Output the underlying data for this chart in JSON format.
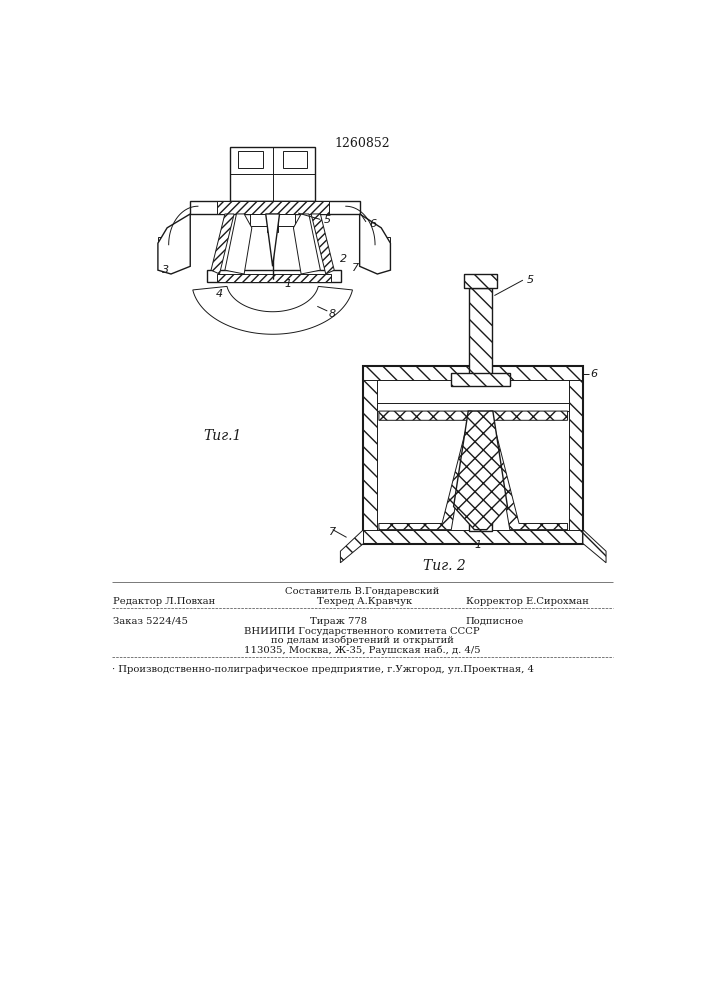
{
  "title": "1260852",
  "fig1_label": "Τиг.1",
  "fig2_label": "Τиг. 2",
  "footer_line1_center": "Составитель В.Гондаревский",
  "footer_line2_left": "Редактор Л.Повхан",
  "footer_line2_center": "Техред А.Кравчук",
  "footer_line2_right": "Корректор Е.Сирохман",
  "footer_line3_left": "Заказ 5224/45",
  "footer_line3_center": "Тираж 778",
  "footer_line3_right": "Подписное",
  "footer_line4": "ВНИИПИ Государственного комитета СССР",
  "footer_line5": "по делам изобретений и открытий",
  "footer_line6": "113035, Москва, Ж-35, Раушская наб., д. 4/5",
  "footer_line7": "· Производственно-полиграфическое предприятие, г.Ужгород, ул.Проектная, 4",
  "bg_color": "#ffffff",
  "line_color": "#1a1a1a"
}
